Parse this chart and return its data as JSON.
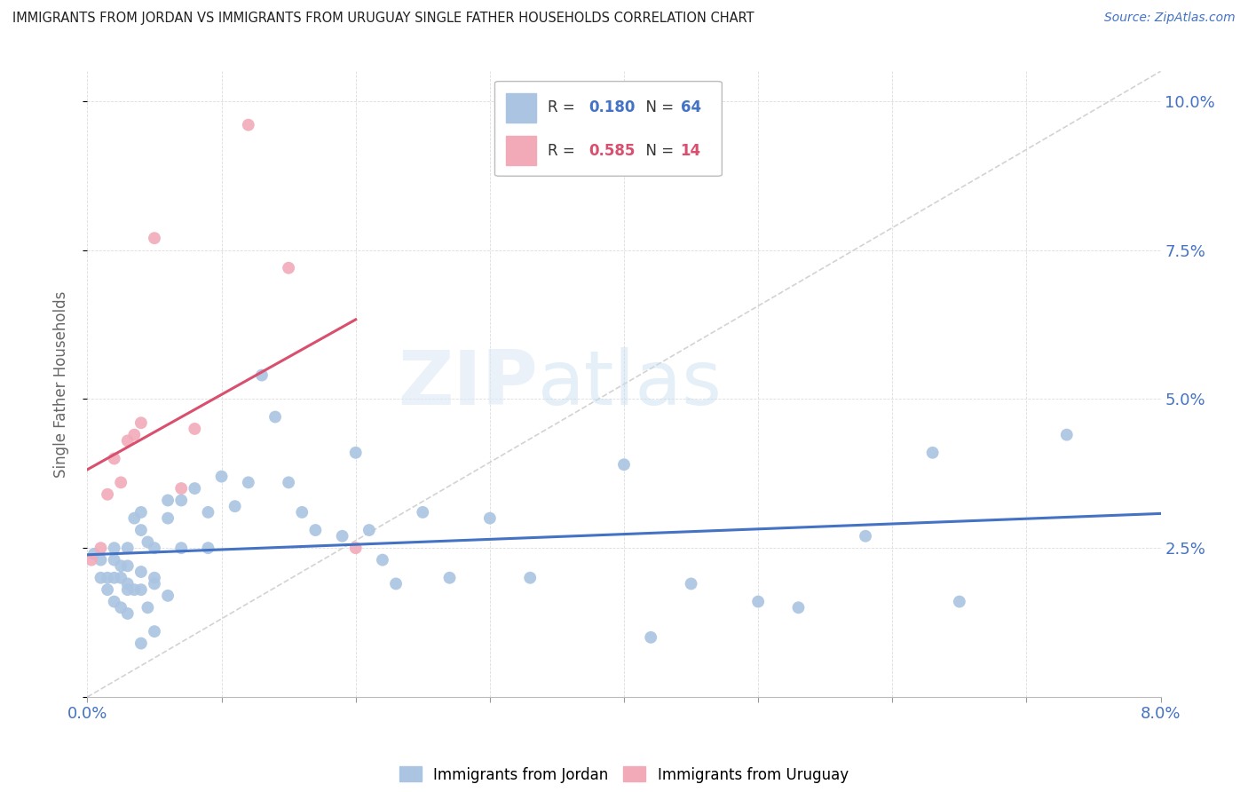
{
  "title": "IMMIGRANTS FROM JORDAN VS IMMIGRANTS FROM URUGUAY SINGLE FATHER HOUSEHOLDS CORRELATION CHART",
  "source": "Source: ZipAtlas.com",
  "ylabel": "Single Father Households",
  "xlim": [
    0.0,
    0.08
  ],
  "ylim": [
    0.0,
    0.105
  ],
  "yticks": [
    0.0,
    0.025,
    0.05,
    0.075,
    0.1
  ],
  "ytick_labels": [
    "",
    "2.5%",
    "5.0%",
    "7.5%",
    "10.0%"
  ],
  "xtick_labels_show": [
    "0.0%",
    "8.0%"
  ],
  "xtick_positions_show": [
    0.0,
    0.08
  ],
  "jordan_color": "#aac4e2",
  "uruguay_color": "#f2aab8",
  "jordan_line_color": "#4472c4",
  "uruguay_line_color": "#d94f6e",
  "R_jordan": "0.180",
  "N_jordan": "64",
  "R_uruguay": "0.585",
  "N_uruguay": "14",
  "watermark_zip": "ZIP",
  "watermark_atlas": "atlas",
  "jordan_x": [
    0.0005,
    0.001,
    0.001,
    0.0015,
    0.0015,
    0.002,
    0.002,
    0.002,
    0.002,
    0.0025,
    0.0025,
    0.0025,
    0.003,
    0.003,
    0.003,
    0.003,
    0.003,
    0.0035,
    0.0035,
    0.004,
    0.004,
    0.004,
    0.004,
    0.004,
    0.0045,
    0.0045,
    0.005,
    0.005,
    0.005,
    0.005,
    0.006,
    0.006,
    0.006,
    0.007,
    0.007,
    0.008,
    0.009,
    0.009,
    0.01,
    0.011,
    0.012,
    0.013,
    0.014,
    0.015,
    0.016,
    0.017,
    0.019,
    0.02,
    0.021,
    0.022,
    0.023,
    0.025,
    0.027,
    0.03,
    0.033,
    0.04,
    0.042,
    0.045,
    0.05,
    0.053,
    0.058,
    0.063,
    0.065,
    0.073
  ],
  "jordan_y": [
    0.024,
    0.023,
    0.02,
    0.02,
    0.018,
    0.025,
    0.023,
    0.02,
    0.016,
    0.022,
    0.02,
    0.015,
    0.025,
    0.022,
    0.019,
    0.018,
    0.014,
    0.03,
    0.018,
    0.031,
    0.028,
    0.021,
    0.018,
    0.009,
    0.026,
    0.015,
    0.025,
    0.02,
    0.019,
    0.011,
    0.033,
    0.03,
    0.017,
    0.033,
    0.025,
    0.035,
    0.031,
    0.025,
    0.037,
    0.032,
    0.036,
    0.054,
    0.047,
    0.036,
    0.031,
    0.028,
    0.027,
    0.041,
    0.028,
    0.023,
    0.019,
    0.031,
    0.02,
    0.03,
    0.02,
    0.039,
    0.01,
    0.019,
    0.016,
    0.015,
    0.027,
    0.041,
    0.016,
    0.044
  ],
  "uruguay_x": [
    0.0003,
    0.001,
    0.0015,
    0.002,
    0.0025,
    0.003,
    0.0035,
    0.004,
    0.005,
    0.007,
    0.008,
    0.012,
    0.015,
    0.02
  ],
  "uruguay_y": [
    0.023,
    0.025,
    0.034,
    0.04,
    0.036,
    0.043,
    0.044,
    0.046,
    0.077,
    0.035,
    0.045,
    0.096,
    0.072,
    0.025
  ]
}
